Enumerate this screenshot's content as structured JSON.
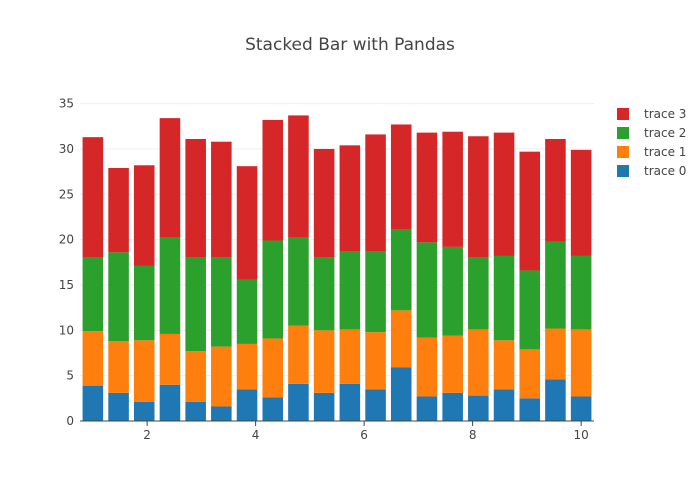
{
  "chart_data": {
    "type": "bar",
    "stacked": true,
    "title": "Stacked Bar with Pandas",
    "xlabel": "",
    "ylabel": "",
    "x": [
      1.0,
      1.474,
      1.947,
      2.421,
      2.895,
      3.368,
      3.842,
      4.316,
      4.789,
      5.263,
      5.737,
      6.211,
      6.684,
      7.158,
      7.632,
      8.105,
      8.579,
      9.053,
      9.526,
      10.0
    ],
    "xlim": [
      0.763,
      10.237
    ],
    "ylim": [
      0,
      36.5
    ],
    "x_ticks": [
      2,
      4,
      6,
      8,
      10
    ],
    "y_ticks": [
      0,
      5,
      10,
      15,
      20,
      25,
      30,
      35
    ],
    "grid": true,
    "legend_position": "right",
    "series": [
      {
        "name": "trace 0",
        "color": "#1f77b4",
        "values": [
          3.9,
          3.1,
          2.1,
          4.0,
          2.1,
          1.6,
          3.5,
          2.6,
          4.1,
          3.1,
          4.1,
          3.5,
          5.9,
          2.7,
          3.1,
          2.8,
          3.5,
          2.5,
          4.6,
          2.7
        ]
      },
      {
        "name": "trace 1",
        "color": "#ff7f0e",
        "values": [
          6.0,
          5.7,
          6.8,
          5.6,
          5.6,
          6.6,
          5.0,
          6.5,
          6.4,
          6.9,
          6.0,
          6.3,
          6.3,
          6.5,
          6.3,
          7.3,
          5.4,
          5.4,
          5.6,
          7.4
        ]
      },
      {
        "name": "trace 2",
        "color": "#2ca02c",
        "values": [
          8.1,
          9.8,
          8.2,
          10.6,
          10.3,
          9.8,
          7.1,
          10.8,
          9.7,
          8.0,
          8.6,
          8.9,
          8.9,
          10.5,
          9.8,
          7.9,
          9.3,
          8.7,
          9.6,
          8.1
        ]
      },
      {
        "name": "trace 3",
        "color": "#d62728",
        "values": [
          13.3,
          9.3,
          11.1,
          13.2,
          13.1,
          12.8,
          12.5,
          13.3,
          13.5,
          12.0,
          11.7,
          12.9,
          11.6,
          12.1,
          12.7,
          13.4,
          13.6,
          13.1,
          11.3,
          11.7
        ]
      }
    ]
  }
}
